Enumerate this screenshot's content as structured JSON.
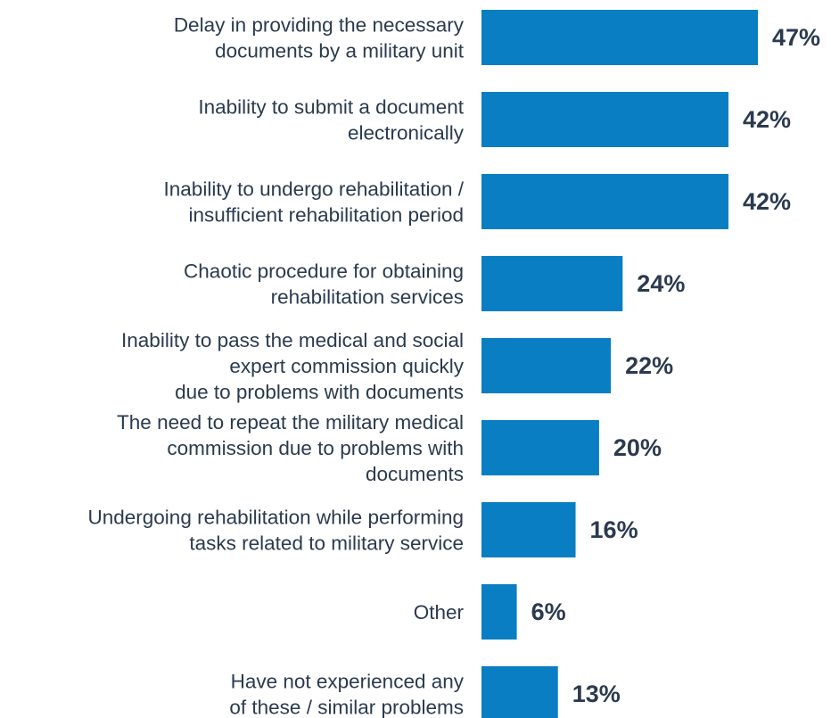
{
  "chart_data": {
    "type": "bar",
    "orientation": "horizontal",
    "bar_color": "#0a7ec2",
    "xlim": [
      0,
      47
    ],
    "categories": [
      [
        "Delay in providing the necessary",
        "documents by a military unit"
      ],
      [
        "Inability to submit a document",
        "electronically"
      ],
      [
        "Inability to undergo rehabilitation /",
        "insufficient rehabilitation period"
      ],
      [
        "Chaotic procedure for obtaining",
        "rehabilitation services"
      ],
      [
        "Inability to pass the medical and social",
        "expert commission quickly",
        "due to problems with documents"
      ],
      [
        "The need to repeat the military medical",
        "commission due to problems with",
        "documents"
      ],
      [
        "Undergoing rehabilitation while performing",
        "tasks related to military service"
      ],
      [
        "Other"
      ],
      [
        "Have not experienced any",
        "of these / similar problems"
      ]
    ],
    "values": [
      47,
      42,
      42,
      24,
      22,
      20,
      16,
      6,
      13
    ],
    "value_labels": [
      "47%",
      "42%",
      "42%",
      "24%",
      "22%",
      "20%",
      "16%",
      "6%",
      "13%"
    ],
    "title": "",
    "xlabel": "",
    "ylabel": ""
  }
}
